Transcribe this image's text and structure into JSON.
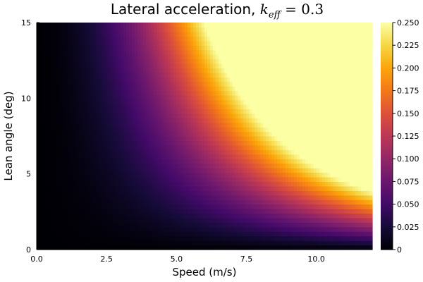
{
  "chart_data": {
    "type": "heatmap",
    "title": "Lateral acceleration, ",
    "title_math": "k",
    "title_math_sub": "eff",
    "title_math_rest": " = 0.3",
    "xlabel": "Speed (m/s)",
    "ylabel": "Lean angle (deg)",
    "xlim": [
      0,
      12
    ],
    "ylim": [
      0,
      15
    ],
    "x_step": 0.1,
    "y_step": 0.3,
    "z_model": "z = coef * speed^2 * tan(lean angle)",
    "z_coef": 0.026,
    "clim": [
      0,
      0.25
    ],
    "colormap": "inferno",
    "xticks": [
      "0.0",
      "2.5",
      "5.0",
      "7.5",
      "10.0"
    ],
    "xtick_values": [
      0,
      2.5,
      5,
      7.5,
      10
    ],
    "yticks": [
      "0",
      "5",
      "10",
      "15"
    ],
    "ytick_values": [
      0,
      5,
      10,
      15
    ],
    "colorbar_ticks": [
      "0",
      "0.025",
      "0.050",
      "0.075",
      "0.100",
      "0.125",
      "0.150",
      "0.175",
      "0.200",
      "0.225",
      "0.250"
    ],
    "colorbar_tick_values": [
      0,
      0.025,
      0.05,
      0.075,
      0.1,
      0.125,
      0.15,
      0.175,
      0.2,
      0.225,
      0.25
    ],
    "grid": false
  }
}
